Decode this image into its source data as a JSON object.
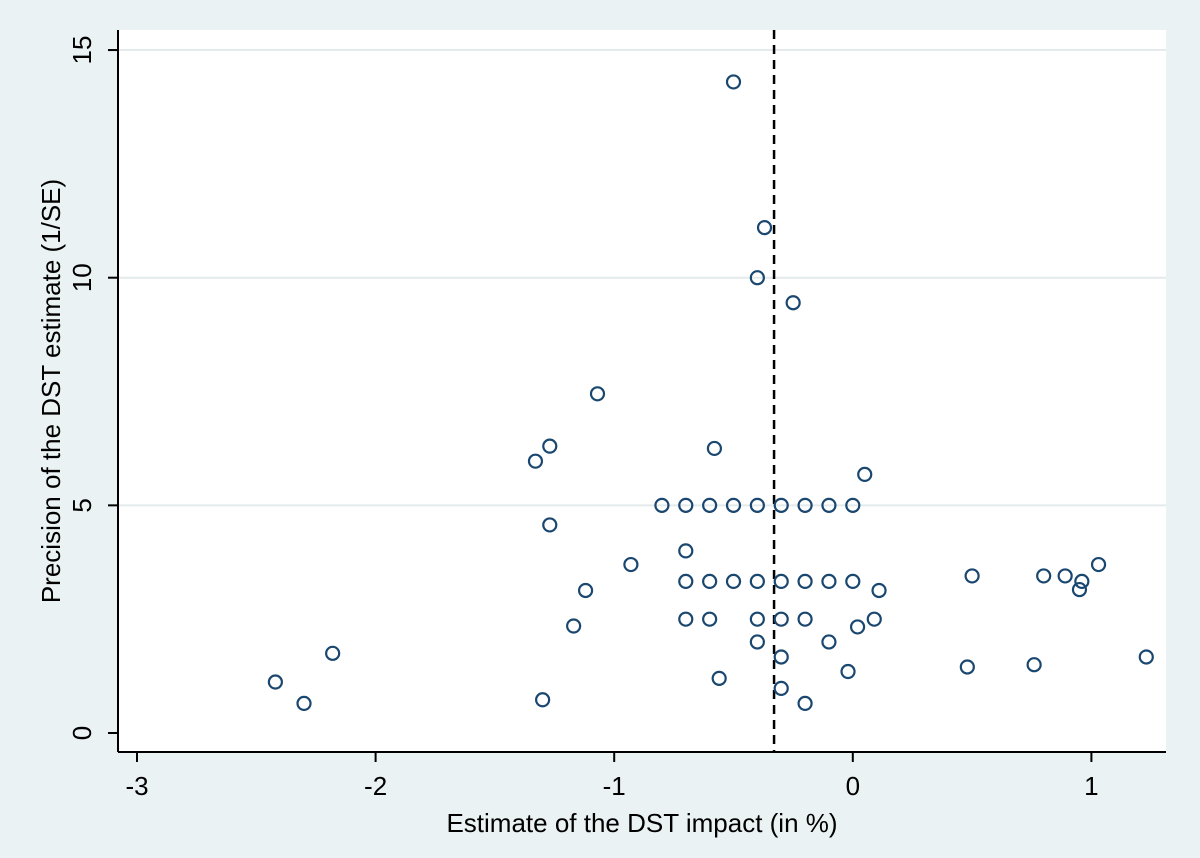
{
  "chart_data": {
    "type": "scatter",
    "title": "",
    "xlabel": "Estimate of the DST impact (in %)",
    "ylabel": "Precision of the DST estimate (1/SE)",
    "xlim": [
      -3.1,
      1.3
    ],
    "ylim": [
      -0.4,
      15.5
    ],
    "xticks": [
      -3,
      -2,
      -1,
      0,
      1
    ],
    "yticks": [
      0,
      5,
      10,
      15
    ],
    "grid": "horizontal",
    "legend": "none",
    "reference_line": {
      "x": -0.33,
      "style": "dashed",
      "color": "#000000"
    },
    "colors": {
      "plot_bg": "#ffffff",
      "outer_bg": "#eaf2f3",
      "grid": "#e3ebec",
      "marker": "#1a476f"
    },
    "points": [
      {
        "x": -0.5,
        "y": 14.3
      },
      {
        "x": -0.37,
        "y": 11.1
      },
      {
        "x": -0.4,
        "y": 10.0
      },
      {
        "x": -0.25,
        "y": 9.45
      },
      {
        "x": -1.07,
        "y": 7.45
      },
      {
        "x": -1.27,
        "y": 6.3
      },
      {
        "x": -1.33,
        "y": 5.97
      },
      {
        "x": -0.58,
        "y": 6.25
      },
      {
        "x": 0.05,
        "y": 5.68
      },
      {
        "x": -0.8,
        "y": 5.0
      },
      {
        "x": -0.7,
        "y": 5.0
      },
      {
        "x": -0.6,
        "y": 5.0
      },
      {
        "x": -0.5,
        "y": 5.0
      },
      {
        "x": -0.4,
        "y": 5.0
      },
      {
        "x": -0.3,
        "y": 5.0
      },
      {
        "x": -0.2,
        "y": 5.0
      },
      {
        "x": -0.1,
        "y": 5.0
      },
      {
        "x": 0.0,
        "y": 5.0
      },
      {
        "x": -1.27,
        "y": 4.57
      },
      {
        "x": -0.7,
        "y": 4.0
      },
      {
        "x": -0.93,
        "y": 3.7
      },
      {
        "x": -0.7,
        "y": 3.33
      },
      {
        "x": -0.6,
        "y": 3.33
      },
      {
        "x": -0.5,
        "y": 3.33
      },
      {
        "x": -0.4,
        "y": 3.33
      },
      {
        "x": -0.3,
        "y": 3.33
      },
      {
        "x": -0.2,
        "y": 3.33
      },
      {
        "x": -0.1,
        "y": 3.33
      },
      {
        "x": 0.0,
        "y": 3.33
      },
      {
        "x": -1.12,
        "y": 3.13
      },
      {
        "x": 0.11,
        "y": 3.13
      },
      {
        "x": 0.5,
        "y": 3.45
      },
      {
        "x": 0.8,
        "y": 3.45
      },
      {
        "x": 0.89,
        "y": 3.45
      },
      {
        "x": 0.96,
        "y": 3.33
      },
      {
        "x": 0.95,
        "y": 3.15
      },
      {
        "x": 1.03,
        "y": 3.7
      },
      {
        "x": -0.7,
        "y": 2.5
      },
      {
        "x": -0.6,
        "y": 2.5
      },
      {
        "x": -0.4,
        "y": 2.5
      },
      {
        "x": -0.3,
        "y": 2.5
      },
      {
        "x": -0.2,
        "y": 2.5
      },
      {
        "x": 0.09,
        "y": 2.5
      },
      {
        "x": -1.17,
        "y": 2.35
      },
      {
        "x": 0.02,
        "y": 2.33
      },
      {
        "x": -0.4,
        "y": 2.0
      },
      {
        "x": -0.1,
        "y": 2.0
      },
      {
        "x": -2.18,
        "y": 1.75
      },
      {
        "x": -0.3,
        "y": 1.67
      },
      {
        "x": 1.23,
        "y": 1.67
      },
      {
        "x": 0.76,
        "y": 1.5
      },
      {
        "x": 0.48,
        "y": 1.45
      },
      {
        "x": -0.02,
        "y": 1.35
      },
      {
        "x": -0.56,
        "y": 1.2
      },
      {
        "x": -2.42,
        "y": 1.12
      },
      {
        "x": -0.3,
        "y": 0.98
      },
      {
        "x": -1.3,
        "y": 0.73
      },
      {
        "x": -2.3,
        "y": 0.65
      },
      {
        "x": -0.2,
        "y": 0.65
      }
    ]
  }
}
